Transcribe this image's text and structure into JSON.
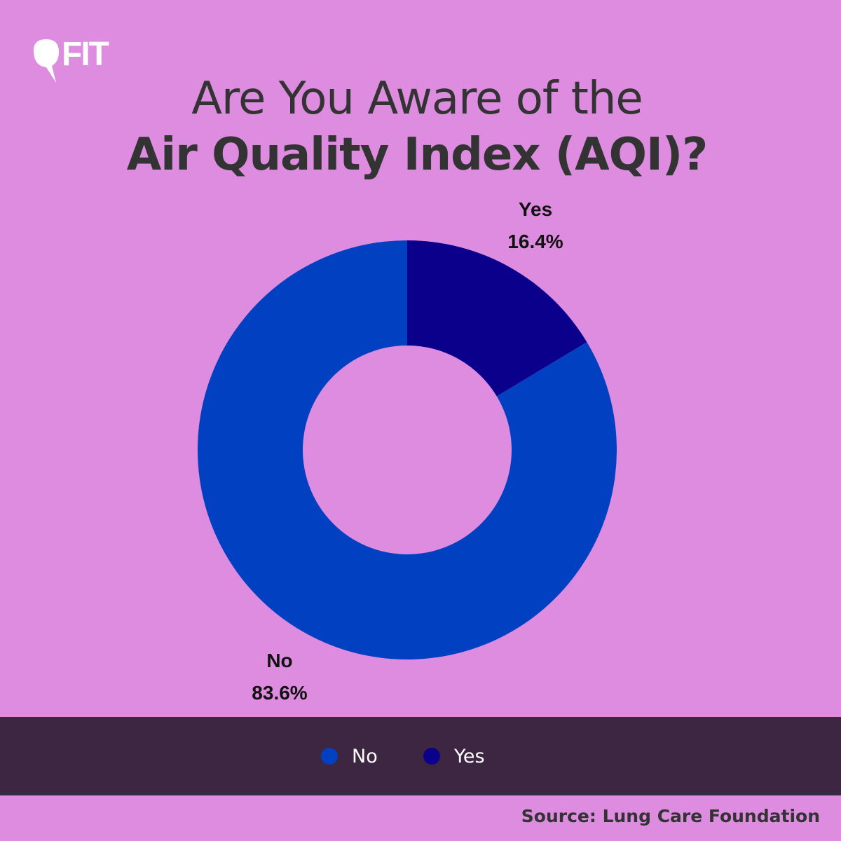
{
  "brand": {
    "logo_text": "FIT"
  },
  "title": {
    "line1": "Are You Aware of the",
    "line2": "Air Quality Index (AQI)?"
  },
  "chart_data": {
    "type": "pie",
    "donut": true,
    "categories": [
      "No",
      "Yes"
    ],
    "values": [
      83.6,
      16.4
    ],
    "value_labels": [
      "83.6%",
      "16.4%"
    ],
    "colors": [
      "#0040c1",
      "#0a008c"
    ],
    "legend": {
      "placement": "bottom",
      "entries": [
        "No",
        "Yes"
      ]
    }
  },
  "source": "Source: Lung Care Foundation",
  "colors": {
    "background": "#dd8ce0",
    "legend_bar": "#3d2641",
    "title_text": "#333333"
  }
}
